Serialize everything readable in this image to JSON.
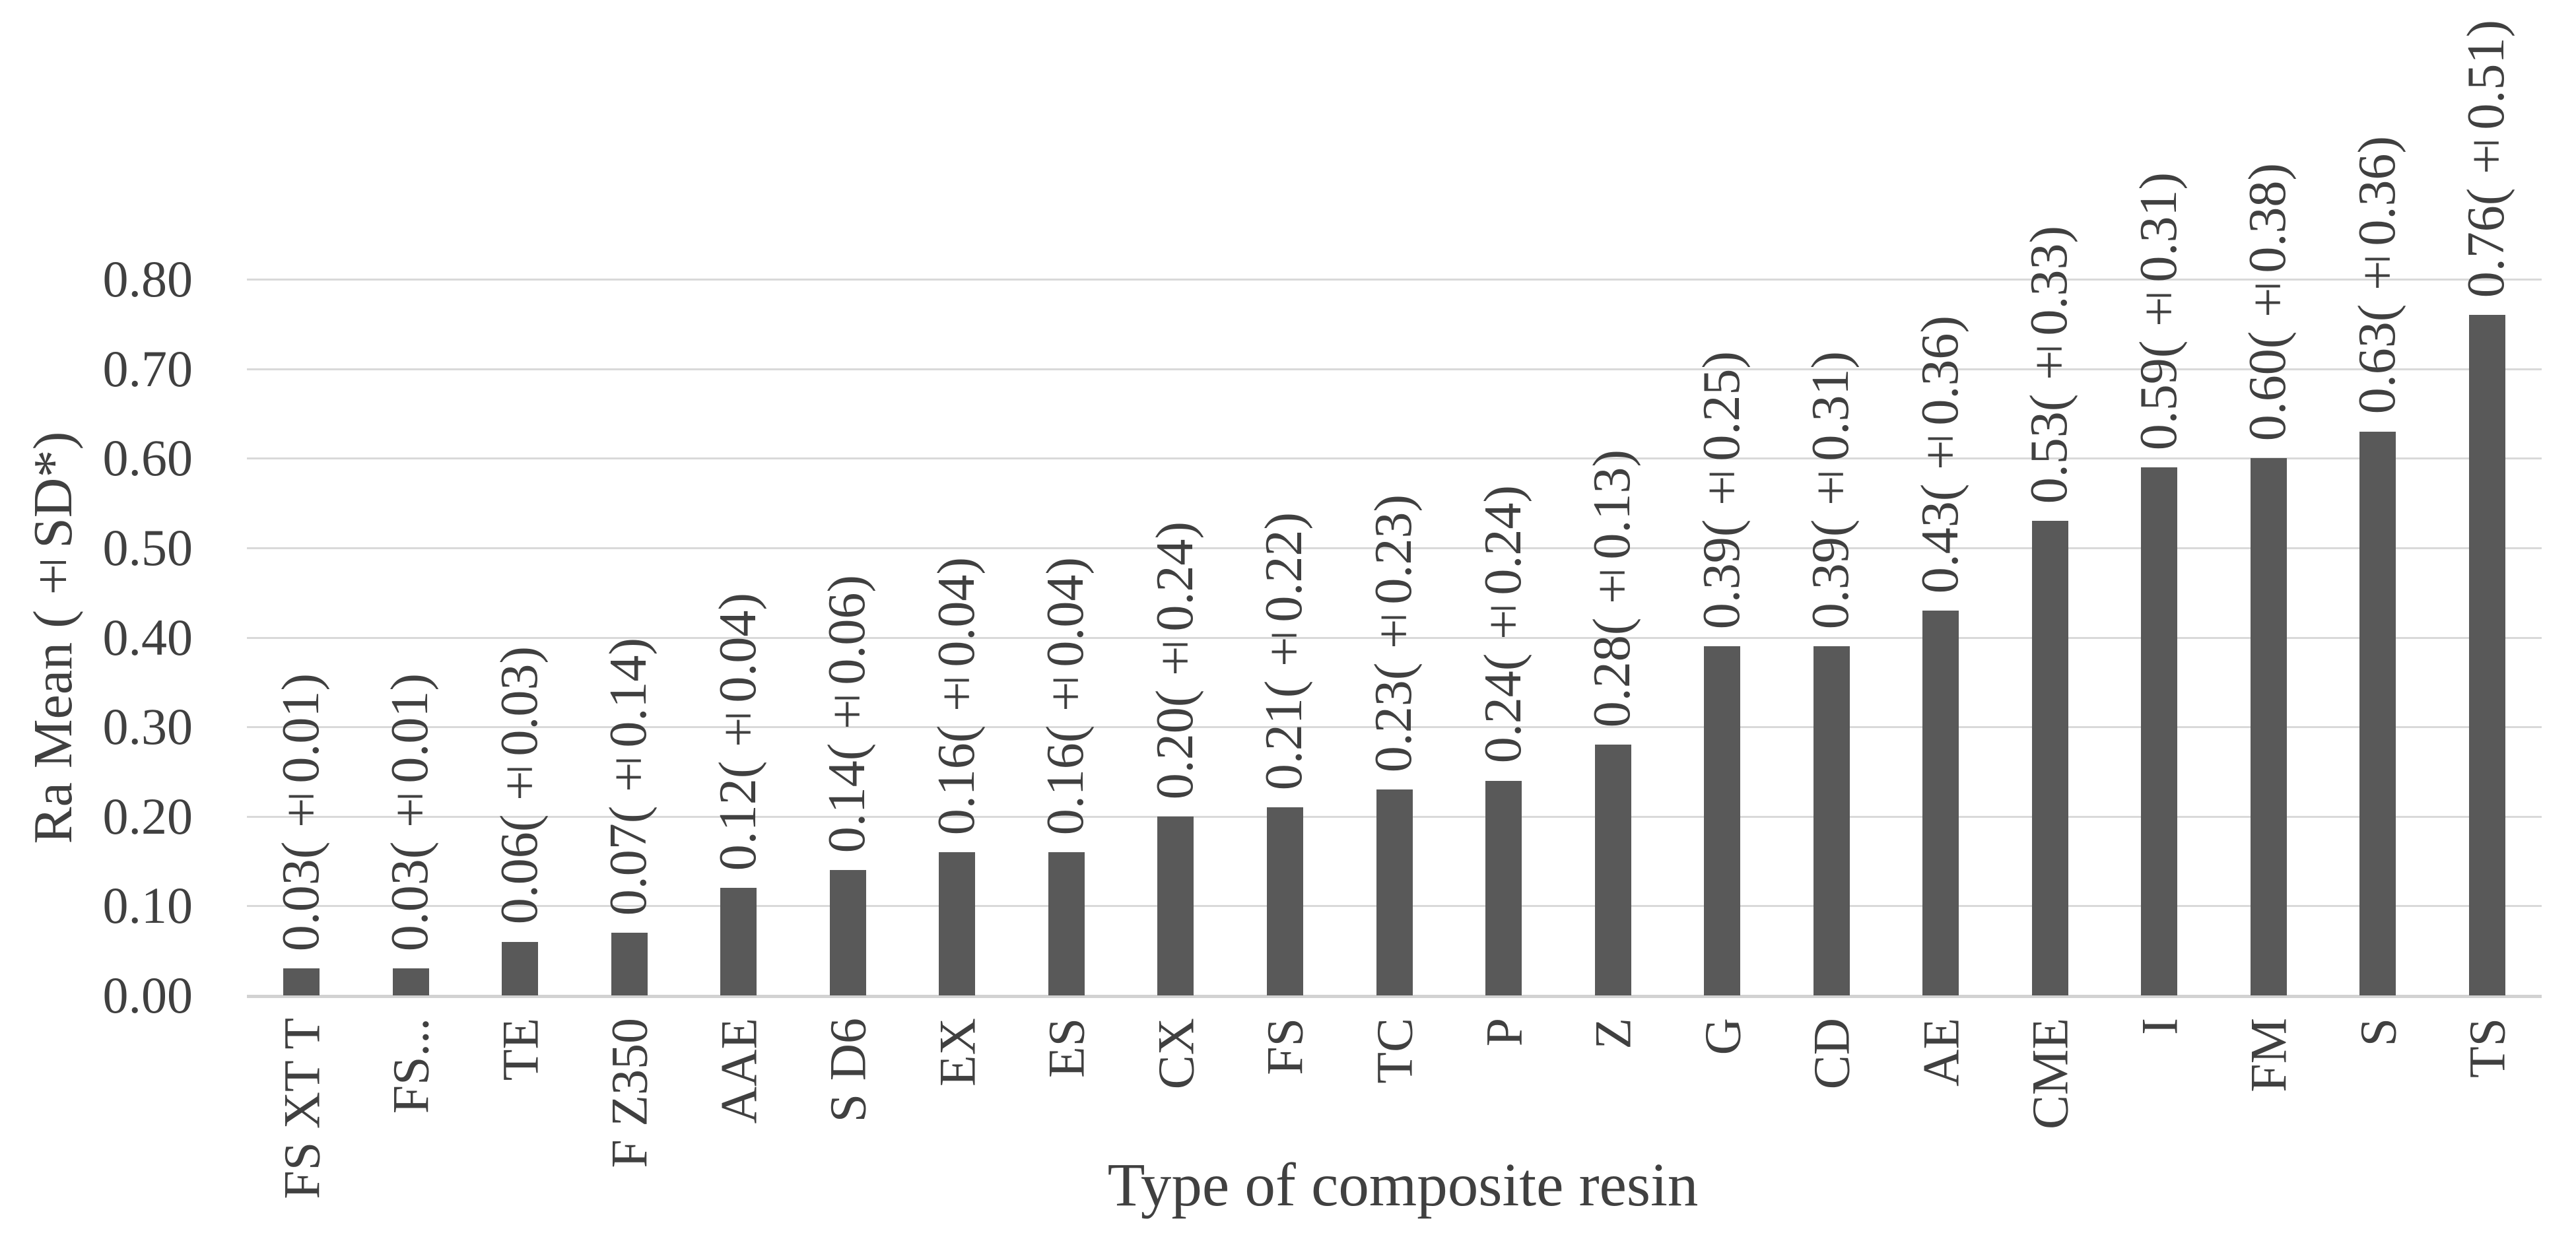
{
  "chart_data": {
    "type": "bar",
    "title": "",
    "xlabel": "Type of composite resin",
    "ylabel": "Ra Mean (±SD*)",
    "ylim": [
      0,
      0.8
    ],
    "ytick_interval": 0.1,
    "ytick_labels": [
      "0.00",
      "0.10",
      "0.20",
      "0.30",
      "0.40",
      "0.50",
      "0.60",
      "0.70",
      "0.80"
    ],
    "grid": "horizontal",
    "legend_position": "none",
    "bar_color": "#595959",
    "gridline_color": "#d9d9d9",
    "axis_line_color": "#d2d2d2",
    "text_color": "#404040",
    "categories": [
      "FS XT T",
      "FS...",
      "TE",
      "F Z350",
      "AAE",
      "S D6",
      "EX",
      "ES",
      "CX",
      "FS",
      "TC",
      "P",
      "Z",
      "G",
      "CD",
      "AE",
      "CME",
      "I",
      "FM",
      "S",
      "TS"
    ],
    "values": [
      0.03,
      0.03,
      0.06,
      0.07,
      0.12,
      0.14,
      0.16,
      0.16,
      0.2,
      0.21,
      0.23,
      0.24,
      0.28,
      0.39,
      0.39,
      0.43,
      0.53,
      0.59,
      0.6,
      0.63,
      0.76
    ],
    "sd": [
      0.01,
      0.01,
      0.03,
      0.14,
      0.04,
      0.06,
      0.04,
      0.04,
      0.24,
      0.22,
      0.23,
      0.24,
      0.13,
      0.25,
      0.31,
      0.36,
      0.33,
      0.31,
      0.38,
      0.36,
      0.51
    ],
    "bar_labels": [
      "0.03(±0.01)",
      "0.03(±0.01)",
      "0.06(±0.03)",
      "0.07(±0.14)",
      "0.12(±0.04)",
      "0.14(±0.06)",
      "0.16(±0.04)",
      "0.16(±0.04)",
      "0.20(±0.24)",
      "0.21(±0.22)",
      "0.23(±0.23)",
      "0.24(±0.24)",
      "0.28(±0.13)",
      "0.39(±0.25)",
      "0.39(±0.31)",
      "0.43(±0.36)",
      "0.53(±0.33)",
      "0.59(±0.31)",
      "0.60(±0.38)",
      "0.63(±0.36)",
      "0.76(±0.51)"
    ]
  }
}
